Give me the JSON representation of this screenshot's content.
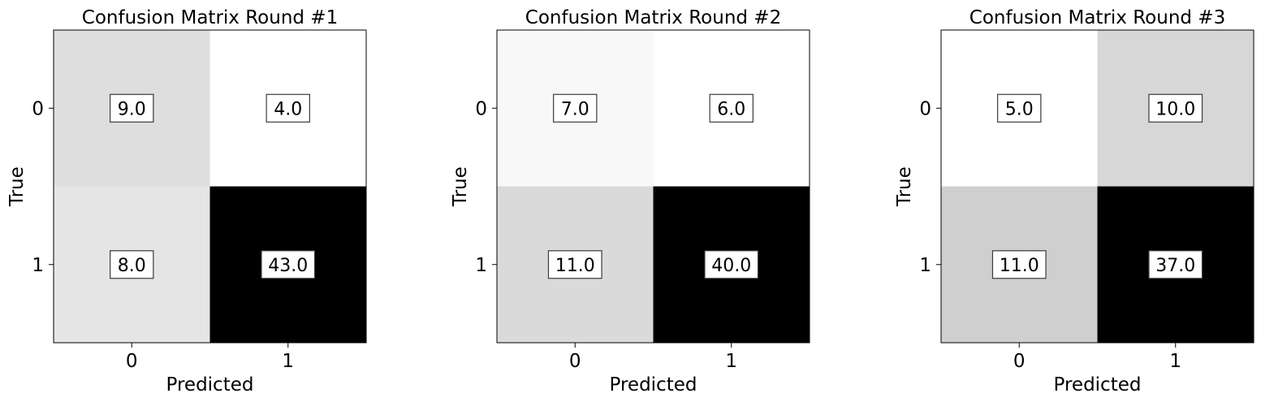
{
  "chart_data": [
    {
      "type": "heatmap",
      "title": "Confusion Matrix Round #1",
      "xlabel": "Predicted",
      "ylabel": "True",
      "x_ticks": [
        "0",
        "1"
      ],
      "y_ticks": [
        "0",
        "1"
      ],
      "matrix": [
        [
          9.0,
          4.0
        ],
        [
          8.0,
          43.0
        ]
      ],
      "cell_labels": [
        [
          "9.0",
          "4.0"
        ],
        [
          "8.0",
          "43.0"
        ]
      ],
      "colormap": "greys"
    },
    {
      "type": "heatmap",
      "title": "Confusion Matrix Round #2",
      "xlabel": "Predicted",
      "ylabel": "True",
      "x_ticks": [
        "0",
        "1"
      ],
      "y_ticks": [
        "0",
        "1"
      ],
      "matrix": [
        [
          7.0,
          6.0
        ],
        [
          11.0,
          40.0
        ]
      ],
      "cell_labels": [
        [
          "7.0",
          "6.0"
        ],
        [
          "11.0",
          "40.0"
        ]
      ],
      "colormap": "greys"
    },
    {
      "type": "heatmap",
      "title": "Confusion Matrix Round #3",
      "xlabel": "Predicted",
      "ylabel": "True",
      "x_ticks": [
        "0",
        "1"
      ],
      "y_ticks": [
        "0",
        "1"
      ],
      "matrix": [
        [
          5.0,
          10.0
        ],
        [
          11.0,
          37.0
        ]
      ],
      "cell_labels": [
        [
          "5.0",
          "10.0"
        ],
        [
          "11.0",
          "37.0"
        ]
      ],
      "colormap": "greys"
    }
  ]
}
